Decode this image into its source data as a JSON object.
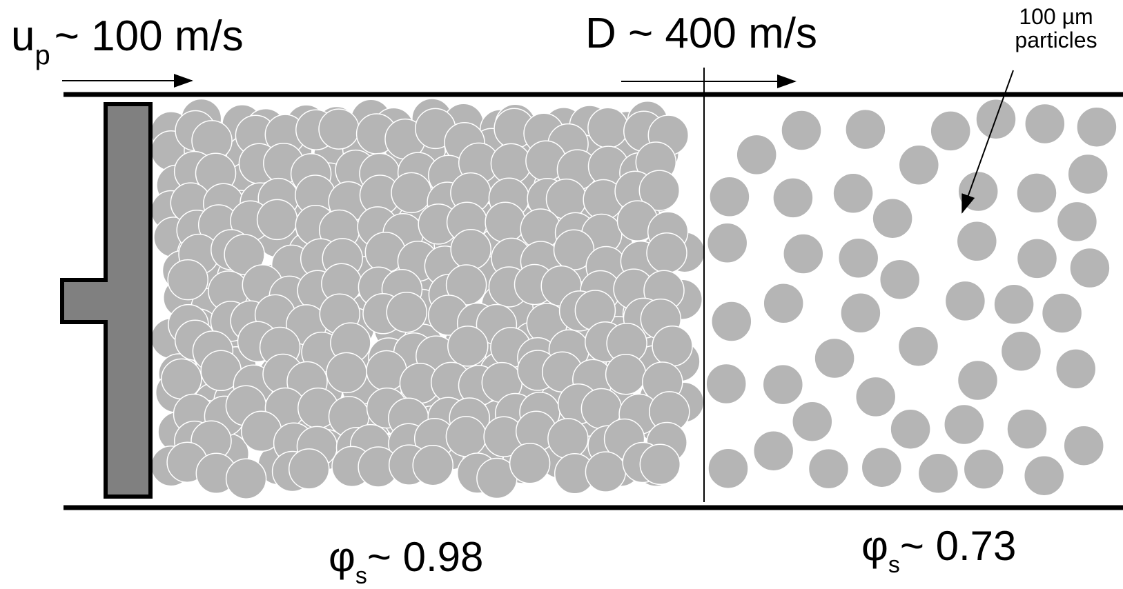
{
  "labels": {
    "piston_velocity_symbol": "u",
    "piston_velocity_subscript": "p",
    "piston_velocity_value": "~ 100 m/s",
    "detonation_velocity": "D ~ 400 m/s",
    "particle_size_line1": "100 µm",
    "particle_size_line2": "particles",
    "phi_symbol": "φ",
    "phi_subscript": "s",
    "compacted_fraction_value": "~ 0.98",
    "loose_fraction_value": "~ 0.73"
  },
  "colors": {
    "particle": "#b5b5b5",
    "piston_fill": "#808080",
    "outline": "#000000",
    "background": "#ffffff"
  }
}
